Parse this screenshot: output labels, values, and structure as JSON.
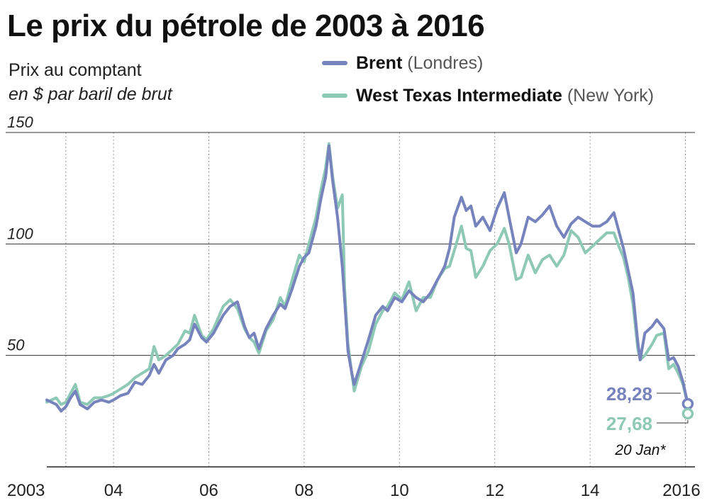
{
  "chart_data": {
    "type": "line",
    "title": "Le prix du pétrole de 2003 à 2016",
    "subtitle": "Prix au comptant",
    "units": "en $ par baril de brut",
    "ylim": [
      0,
      150
    ],
    "yticks": [
      50,
      100,
      150
    ],
    "xlim": [
      2002.6,
      2016.2
    ],
    "xticks": [
      {
        "x": 2003,
        "label": "2003"
      },
      {
        "x": 2004,
        "label": "04"
      },
      {
        "x": 2006,
        "label": "06"
      },
      {
        "x": 2008,
        "label": "08"
      },
      {
        "x": 2010,
        "label": "10"
      },
      {
        "x": 2012,
        "label": "12"
      },
      {
        "x": 2014,
        "label": "14"
      },
      {
        "x": 2016,
        "label": "2016"
      }
    ],
    "gridlines": [
      2003,
      2004,
      2006,
      2008,
      2010,
      2012,
      2014,
      2016
    ],
    "legend_position": "top-right",
    "series": [
      {
        "name": "Brent",
        "note": "(Londres)",
        "color": "#7783bd",
        "points": [
          [
            2002.6,
            30
          ],
          [
            2002.8,
            28
          ],
          [
            2002.9,
            25
          ],
          [
            2003.0,
            27
          ],
          [
            2003.1,
            31
          ],
          [
            2003.2,
            34
          ],
          [
            2003.3,
            28
          ],
          [
            2003.45,
            26
          ],
          [
            2003.6,
            29
          ],
          [
            2003.75,
            30
          ],
          [
            2003.9,
            29
          ],
          [
            2004.0,
            30
          ],
          [
            2004.15,
            32
          ],
          [
            2004.3,
            33
          ],
          [
            2004.45,
            38
          ],
          [
            2004.6,
            37
          ],
          [
            2004.75,
            41
          ],
          [
            2004.85,
            46
          ],
          [
            2004.95,
            42
          ],
          [
            2005.1,
            48
          ],
          [
            2005.25,
            50
          ],
          [
            2005.35,
            53
          ],
          [
            2005.5,
            55
          ],
          [
            2005.6,
            57
          ],
          [
            2005.7,
            64
          ],
          [
            2005.85,
            58
          ],
          [
            2005.95,
            56
          ],
          [
            2006.1,
            60
          ],
          [
            2006.3,
            68
          ],
          [
            2006.45,
            72
          ],
          [
            2006.6,
            74
          ],
          [
            2006.75,
            63
          ],
          [
            2006.85,
            58
          ],
          [
            2006.95,
            60
          ],
          [
            2007.05,
            53
          ],
          [
            2007.2,
            62
          ],
          [
            2007.35,
            68
          ],
          [
            2007.5,
            73
          ],
          [
            2007.6,
            71
          ],
          [
            2007.75,
            80
          ],
          [
            2007.9,
            90
          ],
          [
            2008.0,
            94
          ],
          [
            2008.1,
            96
          ],
          [
            2008.25,
            108
          ],
          [
            2008.35,
            120
          ],
          [
            2008.45,
            130
          ],
          [
            2008.52,
            144
          ],
          [
            2008.6,
            128
          ],
          [
            2008.7,
            112
          ],
          [
            2008.8,
            90
          ],
          [
            2008.85,
            75
          ],
          [
            2008.92,
            52
          ],
          [
            2009.0,
            42
          ],
          [
            2009.05,
            37
          ],
          [
            2009.2,
            47
          ],
          [
            2009.35,
            57
          ],
          [
            2009.5,
            68
          ],
          [
            2009.65,
            72
          ],
          [
            2009.75,
            70
          ],
          [
            2009.9,
            76
          ],
          [
            2010.05,
            74
          ],
          [
            2010.2,
            79
          ],
          [
            2010.35,
            76
          ],
          [
            2010.5,
            74
          ],
          [
            2010.65,
            78
          ],
          [
            2010.8,
            84
          ],
          [
            2010.95,
            90
          ],
          [
            2011.05,
            98
          ],
          [
            2011.15,
            112
          ],
          [
            2011.3,
            121
          ],
          [
            2011.4,
            115
          ],
          [
            2011.5,
            117
          ],
          [
            2011.6,
            108
          ],
          [
            2011.75,
            112
          ],
          [
            2011.9,
            106
          ],
          [
            2012.05,
            116
          ],
          [
            2012.2,
            123
          ],
          [
            2012.3,
            112
          ],
          [
            2012.45,
            96
          ],
          [
            2012.55,
            100
          ],
          [
            2012.7,
            112
          ],
          [
            2012.85,
            110
          ],
          [
            2013.0,
            113
          ],
          [
            2013.15,
            117
          ],
          [
            2013.3,
            108
          ],
          [
            2013.45,
            103
          ],
          [
            2013.6,
            109
          ],
          [
            2013.75,
            112
          ],
          [
            2013.9,
            110
          ],
          [
            2014.05,
            108
          ],
          [
            2014.2,
            108
          ],
          [
            2014.35,
            110
          ],
          [
            2014.5,
            114
          ],
          [
            2014.6,
            106
          ],
          [
            2014.7,
            98
          ],
          [
            2014.8,
            88
          ],
          [
            2014.9,
            78
          ],
          [
            2015.0,
            56
          ],
          [
            2015.05,
            48
          ],
          [
            2015.15,
            60
          ],
          [
            2015.3,
            63
          ],
          [
            2015.4,
            66
          ],
          [
            2015.55,
            62
          ],
          [
            2015.65,
            48
          ],
          [
            2015.75,
            49
          ],
          [
            2015.85,
            45
          ],
          [
            2015.95,
            38
          ],
          [
            2016.05,
            28.28
          ]
        ]
      },
      {
        "name": "West Texas Intermediate",
        "note": "(New York)",
        "color": "#8ec9b5",
        "points": [
          [
            2002.6,
            29
          ],
          [
            2002.8,
            31
          ],
          [
            2002.9,
            28
          ],
          [
            2003.0,
            29
          ],
          [
            2003.1,
            33
          ],
          [
            2003.2,
            37
          ],
          [
            2003.3,
            29
          ],
          [
            2003.45,
            28
          ],
          [
            2003.6,
            31
          ],
          [
            2003.75,
            31
          ],
          [
            2003.9,
            32
          ],
          [
            2004.0,
            33
          ],
          [
            2004.15,
            35
          ],
          [
            2004.3,
            37
          ],
          [
            2004.45,
            40
          ],
          [
            2004.6,
            42
          ],
          [
            2004.75,
            44
          ],
          [
            2004.85,
            54
          ],
          [
            2004.95,
            48
          ],
          [
            2005.1,
            50
          ],
          [
            2005.25,
            53
          ],
          [
            2005.35,
            55
          ],
          [
            2005.5,
            61
          ],
          [
            2005.6,
            60
          ],
          [
            2005.7,
            68
          ],
          [
            2005.85,
            59
          ],
          [
            2005.95,
            57
          ],
          [
            2006.1,
            62
          ],
          [
            2006.3,
            72
          ],
          [
            2006.45,
            75
          ],
          [
            2006.6,
            71
          ],
          [
            2006.75,
            62
          ],
          [
            2006.85,
            58
          ],
          [
            2006.95,
            56
          ],
          [
            2007.05,
            51
          ],
          [
            2007.2,
            61
          ],
          [
            2007.35,
            66
          ],
          [
            2007.5,
            76
          ],
          [
            2007.6,
            72
          ],
          [
            2007.75,
            84
          ],
          [
            2007.9,
            95
          ],
          [
            2008.0,
            92
          ],
          [
            2008.1,
            100
          ],
          [
            2008.25,
            112
          ],
          [
            2008.35,
            124
          ],
          [
            2008.45,
            134
          ],
          [
            2008.52,
            145
          ],
          [
            2008.6,
            130
          ],
          [
            2008.7,
            116
          ],
          [
            2008.8,
            122
          ],
          [
            2008.85,
            80
          ],
          [
            2008.92,
            55
          ],
          [
            2009.0,
            42
          ],
          [
            2009.05,
            34
          ],
          [
            2009.2,
            45
          ],
          [
            2009.35,
            52
          ],
          [
            2009.5,
            64
          ],
          [
            2009.65,
            70
          ],
          [
            2009.75,
            72
          ],
          [
            2009.9,
            78
          ],
          [
            2010.05,
            75
          ],
          [
            2010.2,
            83
          ],
          [
            2010.35,
            70
          ],
          [
            2010.5,
            76
          ],
          [
            2010.65,
            76
          ],
          [
            2010.8,
            84
          ],
          [
            2010.95,
            89
          ],
          [
            2011.05,
            90
          ],
          [
            2011.15,
            97
          ],
          [
            2011.3,
            108
          ],
          [
            2011.4,
            98
          ],
          [
            2011.5,
            97
          ],
          [
            2011.6,
            85
          ],
          [
            2011.75,
            90
          ],
          [
            2011.9,
            97
          ],
          [
            2012.05,
            100
          ],
          [
            2012.2,
            107
          ],
          [
            2012.3,
            100
          ],
          [
            2012.45,
            84
          ],
          [
            2012.55,
            85
          ],
          [
            2012.7,
            95
          ],
          [
            2012.85,
            87
          ],
          [
            2013.0,
            93
          ],
          [
            2013.15,
            95
          ],
          [
            2013.3,
            90
          ],
          [
            2013.45,
            95
          ],
          [
            2013.6,
            106
          ],
          [
            2013.75,
            103
          ],
          [
            2013.9,
            96
          ],
          [
            2014.05,
            99
          ],
          [
            2014.2,
            102
          ],
          [
            2014.35,
            105
          ],
          [
            2014.5,
            105
          ],
          [
            2014.6,
            99
          ],
          [
            2014.7,
            94
          ],
          [
            2014.8,
            85
          ],
          [
            2014.9,
            73
          ],
          [
            2015.0,
            53
          ],
          [
            2015.05,
            48
          ],
          [
            2015.15,
            50
          ],
          [
            2015.3,
            55
          ],
          [
            2015.4,
            59
          ],
          [
            2015.55,
            60
          ],
          [
            2015.65,
            44
          ],
          [
            2015.75,
            46
          ],
          [
            2015.85,
            42
          ],
          [
            2015.95,
            37
          ],
          [
            2016.05,
            27.68
          ]
        ]
      }
    ],
    "end_values": [
      {
        "series": "Brent",
        "label": "28,28"
      },
      {
        "series": "West Texas Intermediate",
        "label": "27,68"
      }
    ],
    "annotation": "20 Jan*"
  }
}
